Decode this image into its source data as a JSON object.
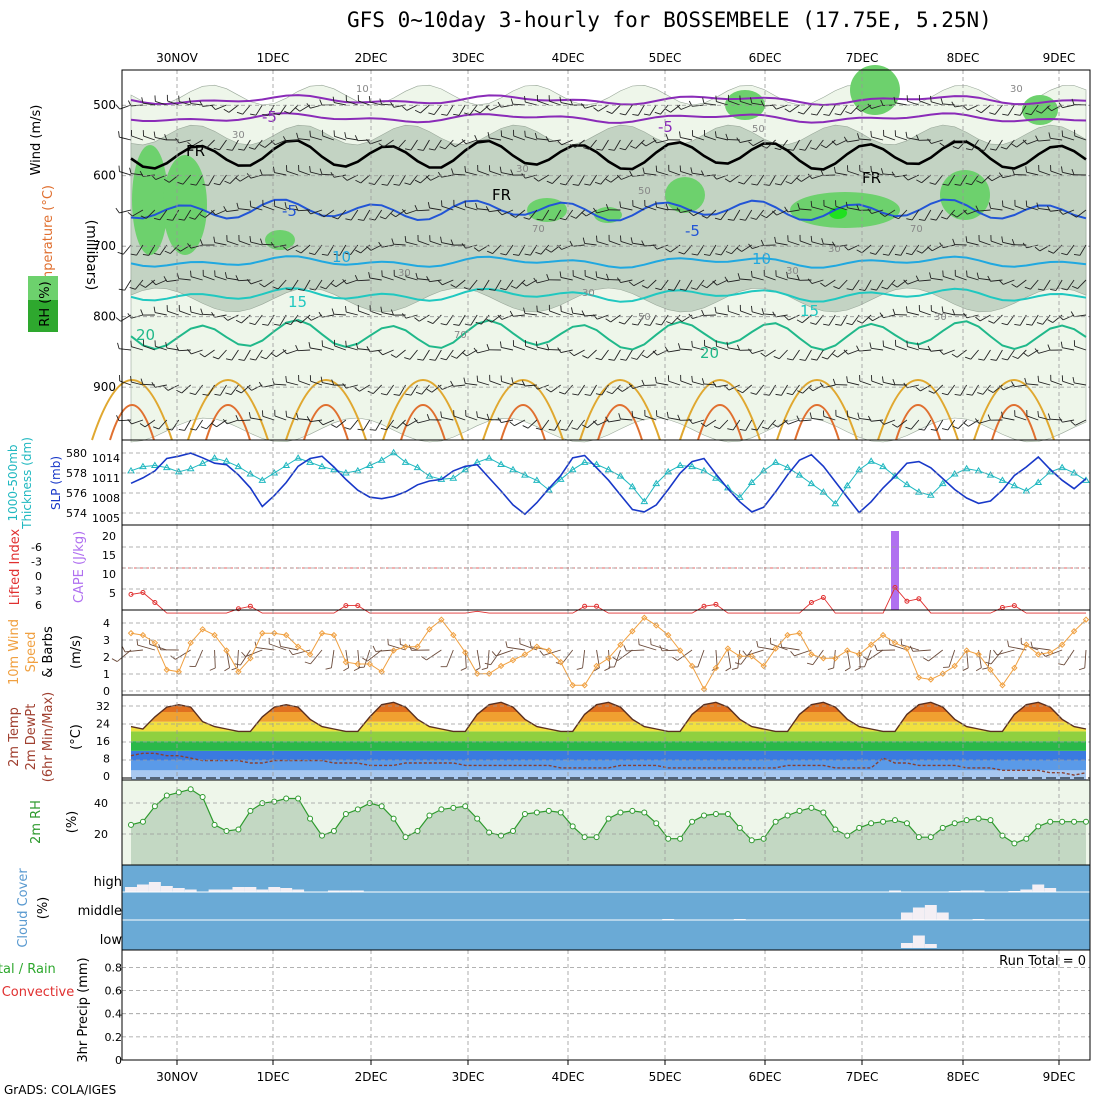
{
  "title": "GFS 0~10day 3-hourly for BOSSEMBELE (17.75E, 5.25N)",
  "footer": "GrADS: COLA/IGES",
  "date_labels": [
    "30NOV",
    "1DEC",
    "2DEC",
    "3DEC",
    "4DEC",
    "5DEC",
    "6DEC",
    "7DEC",
    "8DEC",
    "9DEC"
  ],
  "colors": {
    "rh_light": "#eef6ea",
    "rh_mid": "#c3d3c3",
    "rh_green": "#6dd16d",
    "temp_neg5": "#8a2bb8",
    "temp_5": "#2255d6",
    "temp_10": "#20a8e0",
    "temp_15": "#20c8c0",
    "temp_20": "#20b88a",
    "temp_25": "#e0a830",
    "temp_30": "#e07030",
    "freezing": "#000000",
    "thickness": "#20b8c0",
    "slp": "#1838c8",
    "lifted_index": "#e03030",
    "cape": "#b070f0",
    "wind10": "#f0a040",
    "rh2m": "#2e9a2e",
    "cloud_bg": "#6aaad6"
  },
  "panels": {
    "upper_air": {
      "left_labels": [
        "Wind (m/s)",
        "Temperature (°C)",
        "RH (%)"
      ],
      "axis_label": "(millibars)",
      "ticks": [
        "500",
        "600",
        "700",
        "800",
        "900"
      ],
      "contour_labels": [
        "-5",
        "-5",
        "FR",
        "FR",
        "FR",
        "-5",
        "-5",
        "10",
        "10",
        "15",
        "15",
        "20",
        "20",
        "10",
        "30",
        "50",
        "70",
        "30",
        "50",
        "70",
        "30",
        "30",
        "50",
        "70",
        "30",
        "30",
        "30",
        "30"
      ]
    },
    "thickness_slp": {
      "left_labels": [
        "1000-500mb",
        "Thickness (dm)"
      ],
      "right_label": "SLP (mb)",
      "ticks_left": [
        "580",
        "578",
        "576",
        "574"
      ],
      "ticks_right": [
        "1014",
        "1011",
        "1008",
        "1005"
      ]
    },
    "stability": {
      "left_label": "Lifted Index",
      "right_label": "CAPE (J/kg)",
      "ticks_left": [
        "-6",
        "-3",
        "0",
        "3",
        "6"
      ],
      "ticks_right": [
        "20",
        "15",
        "10",
        "5"
      ]
    },
    "wind10": {
      "left_labels": [
        "10m Wind",
        "Speed",
        "& Barbs"
      ],
      "unit": "(m/s)",
      "ticks": [
        "4",
        "3",
        "2",
        "1",
        "0"
      ]
    },
    "temp2m": {
      "left_labels": [
        "2m Temp",
        "2m DewPt",
        "(6hr Min/Max)"
      ],
      "unit": "(°C)",
      "ticks": [
        "32",
        "24",
        "16",
        "8",
        "0"
      ]
    },
    "rh2m": {
      "left_label": "2m RH",
      "unit": "(%)",
      "ticks": [
        "40",
        "20"
      ]
    },
    "cloud": {
      "left_label": "Cloud Cover",
      "unit": "(%)",
      "levels": [
        "high",
        "middle",
        "low"
      ]
    },
    "precip": {
      "left_labels": [
        "Total / Rain",
        "Convective"
      ],
      "axis_label": "3hr Precip (mm)",
      "ticks": [
        "0.8",
        "0.6",
        "0.4",
        "0.2",
        "0"
      ],
      "run_total": "Run Total = 0"
    }
  },
  "chart_data": {
    "type": "line",
    "x_start": "2023-11-29 09Z",
    "x_step_hours": 3,
    "x_count": 81,
    "thickness_dm": [
      578.1,
      578.5,
      578.6,
      578.4,
      578.0,
      578.3,
      578.8,
      579.3,
      579.0,
      578.5,
      577.8,
      577.2,
      577.9,
      578.6,
      579.3,
      578.9,
      578.5,
      578.2,
      577.9,
      578.1,
      578.6,
      579.1,
      579.8,
      578.9,
      578.4,
      577.6,
      577.3,
      577.4,
      578.2,
      578.9,
      579.3,
      578.7,
      578.2,
      577.7,
      577.2,
      576.3,
      577.3,
      578.2,
      578.9,
      578.7,
      578.2,
      577.6,
      576.6,
      575.2,
      576.9,
      578.0,
      578.6,
      578.5,
      578.1,
      577.4,
      576.5,
      575.6,
      577.0,
      578.1,
      578.9,
      578.4,
      577.7,
      576.9,
      576.1,
      575.0,
      576.7,
      578.2,
      579.0,
      578.5,
      577.6,
      576.8,
      576.1,
      575.8,
      576.9,
      577.8,
      578.3,
      578.1,
      577.7,
      577.2,
      576.7,
      576.2,
      577.0,
      578.0,
      578.4,
      577.9,
      577.2
    ],
    "slp_mb": [
      1010.4,
      1011.1,
      1012.0,
      1013.6,
      1013.9,
      1014.3,
      1013.7,
      1013.0,
      1012.8,
      1011.5,
      1009.8,
      1007.4,
      1008.8,
      1010.5,
      1012.6,
      1013.6,
      1013.9,
      1012.5,
      1010.9,
      1009.5,
      1008.6,
      1008.4,
      1008.7,
      1009.3,
      1010.2,
      1010.7,
      1010.9,
      1012.0,
      1012.6,
      1012.8,
      1011.1,
      1009.4,
      1007.6,
      1006.4,
      1007.9,
      1009.7,
      1011.4,
      1013.7,
      1014.0,
      1012.4,
      1010.8,
      1008.9,
      1007.0,
      1006.7,
      1007.6,
      1009.6,
      1011.7,
      1013.2,
      1013.6,
      1011.6,
      1009.7,
      1008.0,
      1006.7,
      1007.3,
      1009.3,
      1011.5,
      1013.4,
      1014.1,
      1012.6,
      1010.6,
      1008.6,
      1006.6,
      1008.0,
      1009.8,
      1011.3,
      1013.0,
      1013.2,
      1012.4,
      1011.0,
      1009.6,
      1008.5,
      1007.8,
      1008.1,
      1009.5,
      1011.4,
      1012.5,
      1013.8,
      1012.2,
      1010.8,
      1009.7,
      1011.0
    ],
    "cape_jkg": [
      0,
      0,
      0,
      0,
      0,
      0,
      0,
      0,
      0,
      0,
      0,
      0,
      0,
      0,
      0,
      0,
      0,
      0,
      0,
      0,
      0,
      0,
      0,
      0,
      0,
      0,
      0,
      0,
      0,
      0,
      0,
      0,
      0,
      0,
      0,
      0,
      0,
      0,
      0,
      0,
      0,
      0,
      0,
      0,
      0,
      0,
      0,
      0,
      0,
      0,
      0,
      0,
      0,
      0,
      0,
      0,
      0,
      0,
      0,
      0,
      0,
      0,
      0,
      0,
      22,
      0,
      0,
      0,
      0,
      0,
      0,
      0,
      0,
      0,
      0,
      0,
      0,
      0,
      0,
      0,
      0
    ],
    "lifted_index": [
      3.5,
      3.2,
      4.8,
      6.5,
      6.5,
      6.5,
      6.5,
      6.5,
      6.5,
      5.8,
      5.4,
      6.5,
      6.5,
      6.5,
      6.5,
      6.5,
      6.5,
      6.5,
      5.3,
      5.3,
      6.5,
      6.5,
      6.5,
      6.5,
      6.5,
      6.5,
      6.5,
      6.5,
      6.5,
      6.2,
      6.5,
      6.5,
      6.5,
      6.5,
      6.5,
      6.5,
      6.5,
      6.5,
      5.4,
      5.4,
      6.5,
      6.5,
      6.5,
      6.5,
      6.5,
      6.5,
      6.5,
      6.5,
      5.4,
      5.1,
      6.5,
      6.5,
      6.5,
      6.5,
      6.5,
      6.5,
      6.5,
      4.8,
      4.0,
      6.5,
      6.5,
      6.5,
      6.5,
      6.5,
      2.4,
      4.6,
      4.2,
      6.5,
      6.5,
      6.5,
      6.5,
      6.5,
      6.5,
      5.6,
      5.3,
      6.5,
      6.5,
      6.5,
      6.5,
      6.5,
      6.5
    ],
    "wind10_ms": [
      3.1,
      3.0,
      2.6,
      1.2,
      1.1,
      2.6,
      3.3,
      3.0,
      2.2,
      1.1,
      1.8,
      3.1,
      3.1,
      3.0,
      2.4,
      2.0,
      3.1,
      3.0,
      1.6,
      1.5,
      1.5,
      1.1,
      2.2,
      2.4,
      2.4,
      3.3,
      3.8,
      3.0,
      2.1,
      1.0,
      1.0,
      1.4,
      1.7,
      2.0,
      2.4,
      2.2,
      1.6,
      0.4,
      0.4,
      1.4,
      1.8,
      2.5,
      3.2,
      3.9,
      3.5,
      3.0,
      2.2,
      1.4,
      0.2,
      1.3,
      2.3,
      1.9,
      1.9,
      1.4,
      2.3,
      3.0,
      3.1,
      2.0,
      1.8,
      1.8,
      2.2,
      2.0,
      2.5,
      3.0,
      2.6,
      2.3,
      0.8,
      0.7,
      1.0,
      1.4,
      2.2,
      2.0,
      1.2,
      0.4,
      1.3,
      2.5,
      2.0,
      2.1,
      2.5,
      3.2,
      3.8
    ],
    "temp2m_c": [
      22,
      21,
      26,
      30,
      31,
      30,
      24,
      22,
      21,
      20,
      20,
      26,
      30,
      31,
      30,
      25,
      22,
      21,
      20,
      20,
      26,
      31,
      32,
      30,
      25,
      22,
      21,
      20,
      20,
      27,
      31,
      32,
      30,
      25,
      22,
      21,
      20,
      20,
      27,
      31,
      32,
      30,
      25,
      22,
      21,
      20,
      20,
      27,
      31,
      32,
      30,
      25,
      22,
      21,
      20,
      20,
      27,
      31,
      32,
      30,
      25,
      22,
      21,
      20,
      20,
      27,
      31,
      32,
      30,
      25,
      22,
      21,
      20,
      20,
      27,
      31,
      32,
      30,
      25,
      22,
      21
    ],
    "dewpt2m_c": [
      10,
      11,
      11,
      10,
      10,
      9,
      8,
      8,
      8,
      8,
      7,
      7,
      8,
      8,
      8,
      8,
      8,
      7,
      7,
      7,
      6,
      6,
      6,
      7,
      7,
      7,
      7,
      7,
      6,
      6,
      6,
      6,
      6,
      6,
      6,
      6,
      5,
      5,
      5,
      5,
      5,
      6,
      6,
      6,
      6,
      5,
      5,
      5,
      5,
      5,
      5,
      5,
      5,
      5,
      5,
      6,
      6,
      6,
      6,
      5,
      5,
      5,
      5,
      9,
      7,
      7,
      6,
      6,
      6,
      6,
      5,
      5,
      5,
      4,
      4,
      4,
      4,
      3,
      3,
      2,
      3
    ],
    "rh2m_pct": [
      26,
      28,
      38,
      45,
      47,
      49,
      44,
      26,
      22,
      23,
      35,
      40,
      41,
      43,
      43,
      30,
      19,
      22,
      33,
      36,
      40,
      38,
      30,
      18,
      22,
      32,
      36,
      37,
      38,
      30,
      21,
      19,
      22,
      33,
      34,
      35,
      34,
      25,
      18,
      18,
      30,
      34,
      35,
      34,
      27,
      17,
      17,
      28,
      32,
      33,
      33,
      24,
      16,
      17,
      28,
      32,
      35,
      37,
      34,
      23,
      19,
      24,
      27,
      28,
      29,
      27,
      18,
      18,
      24,
      27,
      29,
      30,
      29,
      19,
      14,
      17,
      25,
      28,
      28,
      28,
      28
    ],
    "cloud_high_pct": [
      10,
      15,
      20,
      12,
      8,
      5,
      0,
      5,
      5,
      10,
      10,
      5,
      10,
      8,
      5,
      0,
      0,
      3,
      3,
      3,
      0,
      0,
      0,
      0,
      0,
      0,
      0,
      0,
      0,
      0,
      0,
      0,
      0,
      0,
      0,
      0,
      0,
      0,
      0,
      0,
      0,
      0,
      0,
      0,
      0,
      0,
      0,
      0,
      0,
      0,
      0,
      0,
      0,
      0,
      0,
      0,
      0,
      0,
      0,
      0,
      0,
      0,
      0,
      0,
      3,
      0,
      0,
      0,
      0,
      2,
      3,
      3,
      0,
      0,
      2,
      5,
      15,
      8,
      0,
      0,
      0
    ],
    "cloud_middle_pct": [
      0,
      0,
      0,
      0,
      0,
      0,
      0,
      0,
      0,
      0,
      0,
      0,
      0,
      0,
      0,
      0,
      0,
      0,
      0,
      0,
      0,
      0,
      0,
      0,
      0,
      0,
      0,
      0,
      0,
      0,
      0,
      0,
      0,
      0,
      0,
      0,
      0,
      0,
      0,
      0,
      0,
      0,
      0,
      0,
      0,
      2,
      0,
      0,
      0,
      0,
      0,
      2,
      0,
      0,
      0,
      0,
      0,
      0,
      0,
      0,
      0,
      0,
      0,
      0,
      0,
      15,
      25,
      30,
      15,
      0,
      0,
      2,
      0,
      0,
      0,
      0,
      0,
      0,
      0,
      0,
      0
    ],
    "cloud_low_pct": [
      0,
      0,
      0,
      0,
      0,
      0,
      0,
      0,
      0,
      0,
      0,
      0,
      0,
      0,
      0,
      0,
      0,
      0,
      0,
      0,
      0,
      0,
      0,
      0,
      0,
      0,
      0,
      0,
      0,
      0,
      0,
      0,
      0,
      0,
      0,
      0,
      0,
      0,
      0,
      0,
      0,
      0,
      0,
      0,
      0,
      0,
      0,
      0,
      0,
      0,
      0,
      0,
      0,
      0,
      0,
      0,
      0,
      0,
      0,
      0,
      0,
      0,
      0,
      0,
      0,
      10,
      25,
      8,
      0,
      0,
      0,
      0,
      0,
      0,
      0,
      0,
      0,
      0,
      0,
      0,
      0
    ],
    "precip_mm": [
      0,
      0,
      0,
      0,
      0,
      0,
      0,
      0,
      0,
      0,
      0,
      0,
      0,
      0,
      0,
      0,
      0,
      0,
      0,
      0,
      0,
      0,
      0,
      0,
      0,
      0,
      0,
      0,
      0,
      0,
      0,
      0,
      0,
      0,
      0,
      0,
      0,
      0,
      0,
      0,
      0,
      0,
      0,
      0,
      0,
      0,
      0,
      0,
      0,
      0,
      0,
      0,
      0,
      0,
      0,
      0,
      0,
      0,
      0,
      0,
      0,
      0,
      0,
      0,
      0,
      0,
      0,
      0,
      0,
      0,
      0,
      0,
      0,
      0,
      0,
      0,
      0,
      0,
      0,
      0,
      0
    ],
    "ranges": {
      "pressure_mb": [
        450,
        975
      ],
      "thickness_dm": [
        573,
        581
      ],
      "slp_mb": [
        1005,
        1016
      ],
      "lifted_index": [
        6,
        -6
      ],
      "cape_jkg": [
        0,
        22
      ],
      "wind10_ms": [
        0,
        4.3
      ],
      "temp2m_c": [
        0,
        35
      ],
      "rh2m_pct": [
        0,
        55
      ],
      "precip_mm": [
        0,
        0.95
      ]
    }
  }
}
